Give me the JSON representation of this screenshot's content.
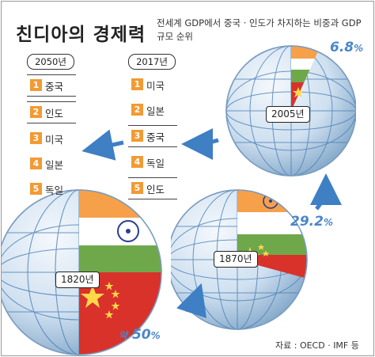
{
  "title": "친디아의 경제력",
  "subtitle": "전세계 GDP에서 중국 · 인도가 차지하는 비중과 GDP 규모 순위",
  "ranking_2050": {
    "year": "2050년",
    "items": [
      {
        "rank": "1",
        "name": "중국"
      },
      {
        "rank": "2",
        "name": "인도"
      },
      {
        "rank": "3",
        "name": "미국"
      },
      {
        "rank": "4",
        "name": "일본"
      },
      {
        "rank": "5",
        "name": "독일"
      }
    ]
  },
  "ranking_2017": {
    "year": "2017년",
    "items": [
      {
        "rank": "1",
        "name": "미국"
      },
      {
        "rank": "2",
        "name": "일본"
      },
      {
        "rank": "3",
        "name": "중국"
      },
      {
        "rank": "4",
        "name": "독일"
      },
      {
        "rank": "5",
        "name": "인도"
      }
    ]
  },
  "globes": {
    "y1820": {
      "label": "1820년",
      "share_text": "약",
      "share_value": "50",
      "share_unit": "%",
      "share_fraction": 0.5
    },
    "y1870": {
      "label": "1870년",
      "share_value": "29.2",
      "share_unit": "%",
      "share_fraction": 0.292
    },
    "y2005": {
      "label": "2005년",
      "share_value": "6.8",
      "share_unit": "%",
      "share_fraction": 0.068
    }
  },
  "source": "자료 : OECD · IMF 등",
  "colors": {
    "accent_blue": "#4a86c8",
    "rank_orange": "#f39a33",
    "india_saffron": "#f6a04a",
    "india_green": "#6fa84a",
    "china_red": "#d9322a",
    "china_star": "#ffd84a"
  }
}
